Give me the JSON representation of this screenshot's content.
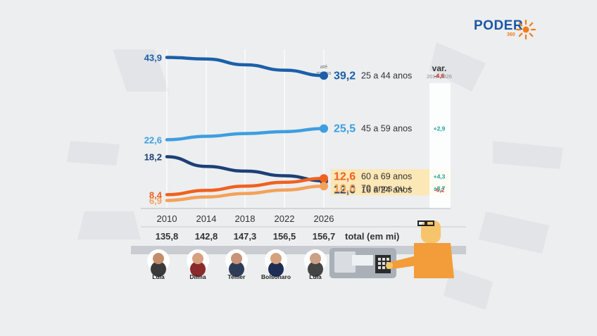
{
  "brand": {
    "name": "PODER",
    "number": "360"
  },
  "colors": {
    "c25_44": "#1b5fa8",
    "c45_59": "#3d9ee0",
    "c16_24": "#1d3f76",
    "c60_69": "#f0611e",
    "c70": "#f3a259",
    "highlight": "#fce7b6",
    "positive": "#1aa6a0",
    "negative": "#c0392b"
  },
  "chart_data": {
    "type": "line",
    "x": [
      "2010",
      "2014",
      "2018",
      "2022",
      "2026"
    ],
    "end_note": "até\nmarço",
    "series": [
      {
        "name": "25 a 44 anos",
        "values": [
          43.9,
          43.5,
          42.0,
          40.6,
          39.2
        ],
        "start_label": "43,9",
        "end_label": "39,2",
        "var": "-4,6",
        "color": "#1b5fa8",
        "highlight": false
      },
      {
        "name": "45 a 59 anos",
        "values": [
          22.6,
          23.5,
          24.2,
          24.7,
          25.5
        ],
        "start_label": "22,6",
        "end_label": "25,5",
        "var": "+2,9",
        "color": "#3d9ee0",
        "highlight": false
      },
      {
        "name": "16 a 24 anos",
        "values": [
          18.2,
          15.7,
          14.5,
          13.3,
          12.0
        ],
        "start_label": "18,2",
        "end_label": "12,0",
        "var": "-6,2",
        "color": "#1d3f76",
        "highlight": false
      },
      {
        "name": "60 a 69 anos",
        "values": [
          8.4,
          9.5,
          10.6,
          11.6,
          12.6
        ],
        "start_label": "8,4",
        "end_label": "12,6",
        "var": "+4,3",
        "color": "#f0611e",
        "highlight": true
      },
      {
        "name": "70 anos ou +",
        "values": [
          6.9,
          7.8,
          8.7,
          9.6,
          10.6
        ],
        "start_label": "6,9",
        "end_label": "10,6",
        "var": "+3,7",
        "color": "#f3a259",
        "highlight": true
      }
    ],
    "var_header": "var.",
    "var_subheader": "2010-2026",
    "totals": [
      "135,8",
      "142,8",
      "147,3",
      "156,5",
      "156,7"
    ],
    "totals_label": "total (em mi)",
    "presidents": [
      "Lula",
      "Dilma",
      "Temer",
      "Bolsonaro",
      "Lula"
    ]
  }
}
